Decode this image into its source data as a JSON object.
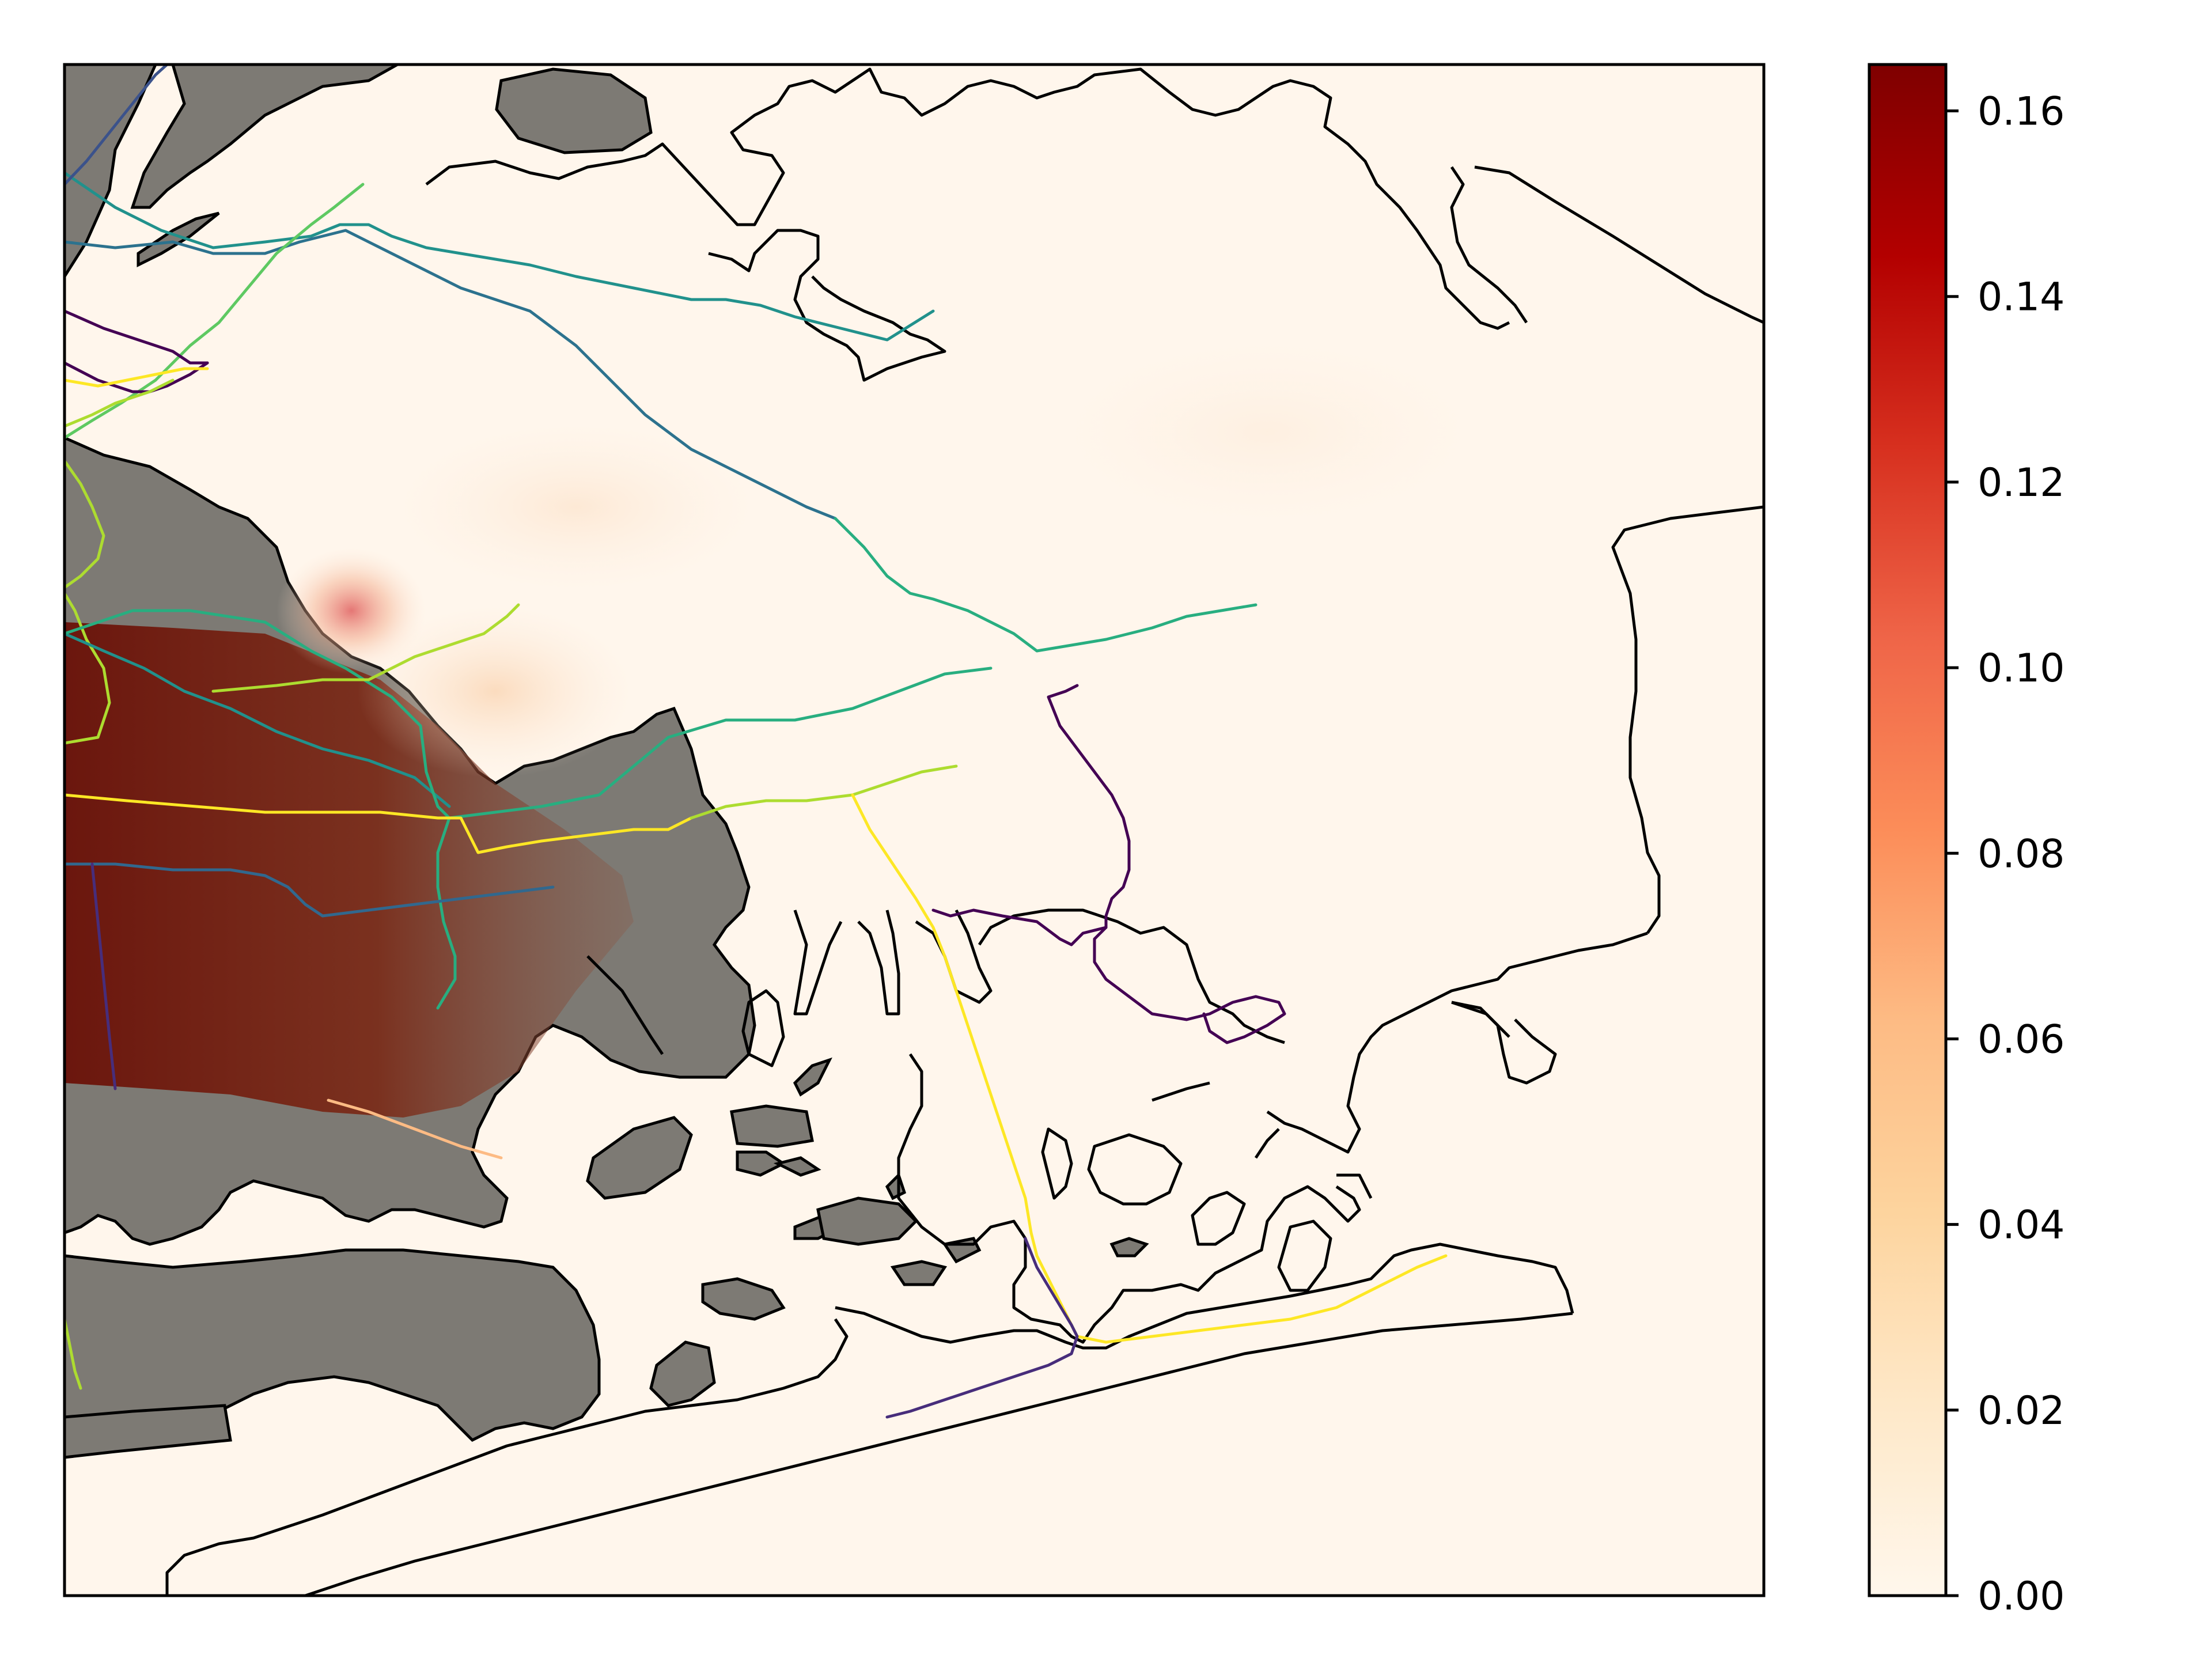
{
  "figure": {
    "background": "#ffffff",
    "water_color": "#fff6ec",
    "land_color": "#7d7a74",
    "coast_color": "#000000"
  },
  "colorbar": {
    "cmap": "OrRd",
    "range": [
      0.0,
      0.165
    ],
    "stops": [
      "#fff7ec",
      "#fee8c8",
      "#fdd49e",
      "#fdbb84",
      "#fc8d59",
      "#ef6548",
      "#d7301f",
      "#b30000",
      "#7f0000"
    ],
    "ticks": [
      {
        "value": 0.0,
        "label": "0.00"
      },
      {
        "value": 0.02,
        "label": "0.02"
      },
      {
        "value": 0.04,
        "label": "0.04"
      },
      {
        "value": 0.06,
        "label": "0.06"
      },
      {
        "value": 0.08,
        "label": "0.08"
      },
      {
        "value": 0.1,
        "label": "0.10"
      },
      {
        "value": 0.12,
        "label": "0.12"
      },
      {
        "value": 0.14,
        "label": "0.14"
      },
      {
        "value": 0.16,
        "label": "0.16"
      }
    ]
  },
  "transit_line_colors": [
    "#440154",
    "#3b528b",
    "#2c728e",
    "#21918c",
    "#28ae80",
    "#5ec962",
    "#addc30",
    "#fde725",
    "#31688e",
    "#472d7b"
  ]
}
